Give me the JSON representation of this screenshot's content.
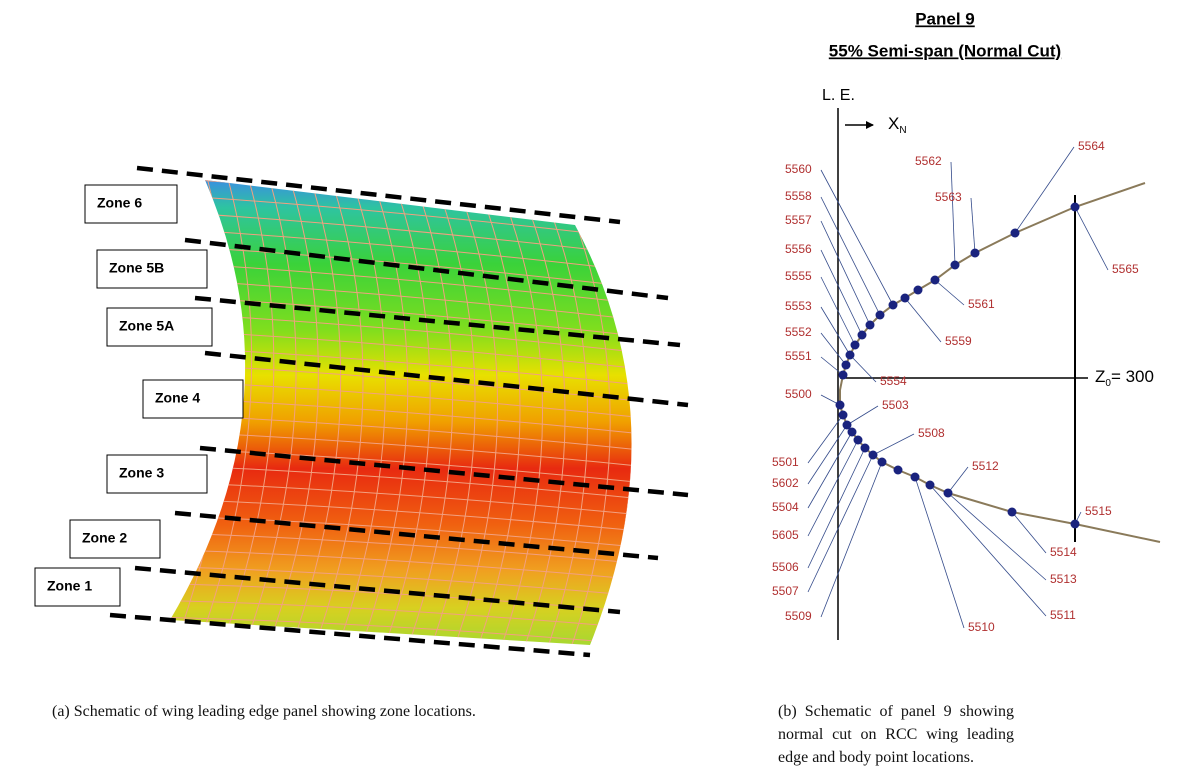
{
  "panel_a": {
    "zones": [
      "Zone 6",
      "Zone 5B",
      "Zone 5A",
      "Zone 4",
      "Zone 3",
      "Zone 2",
      "Zone 1"
    ],
    "caption": "(a) Schematic of wing leading edge panel showing zone locations."
  },
  "panel_b": {
    "title": "Panel 9",
    "subtitle": "55% Semi-span (Normal Cut)",
    "le_label": "L. E.",
    "x_label": "X",
    "x_sub": "N",
    "z_label": "Z",
    "z_sub": "0",
    "z_value": "= 300",
    "upper_points": [
      "5551",
      "5552",
      "5553",
      "5555",
      "5556",
      "5557",
      "5558",
      "5560",
      "5554",
      "5559",
      "5561",
      "5562",
      "5563",
      "5564",
      "5565"
    ],
    "lower_points": [
      "5500",
      "5501",
      "5602",
      "5504",
      "5605",
      "5506",
      "5507",
      "5509",
      "5503",
      "5508",
      "5510",
      "5511",
      "5512",
      "5513",
      "5514",
      "5515"
    ],
    "caption": "(b) Schematic of panel 9 showing normal cut on RCC wing leading edge and body point locations."
  }
}
